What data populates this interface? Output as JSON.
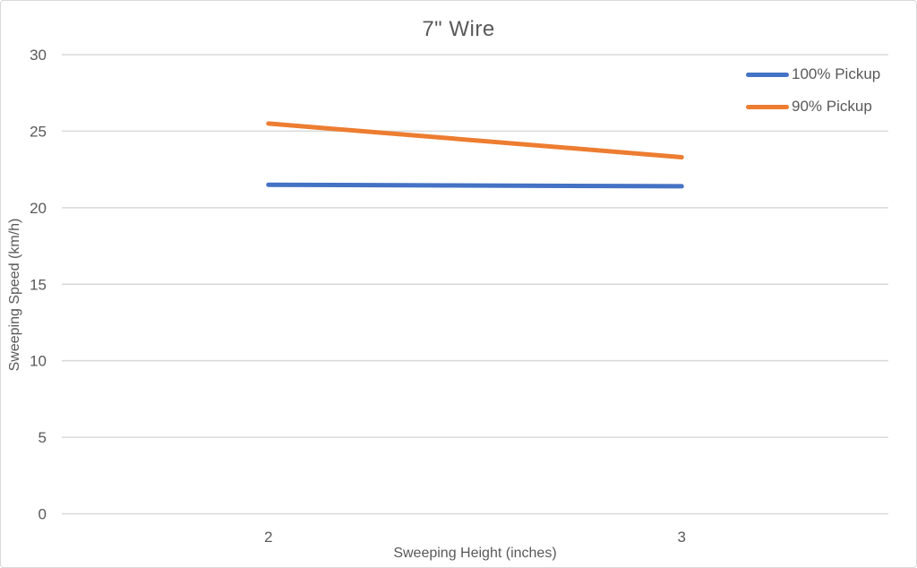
{
  "chart_data": {
    "type": "line",
    "title": "7\" Wire",
    "categories": [
      "2",
      "3"
    ],
    "series": [
      {
        "name": "100% Pickup",
        "color": "#4472C4",
        "values": [
          21.5,
          21.4
        ]
      },
      {
        "name": "90% Pickup",
        "color": "#ED7D31",
        "values": [
          25.5,
          23.3
        ]
      }
    ],
    "xlabel": "Sweeping Height (inches)",
    "ylabel": "Sweeping Speed (km/h)",
    "ylim": [
      0,
      30
    ],
    "yticks": [
      0,
      5,
      10,
      15,
      20,
      25,
      30
    ],
    "grid": "horizontal",
    "legend_position": "right"
  },
  "colors": {
    "text": "#595959",
    "gridline": "#D9D9D9",
    "border": "#D9D9D9",
    "background": "#FFFFFF"
  }
}
